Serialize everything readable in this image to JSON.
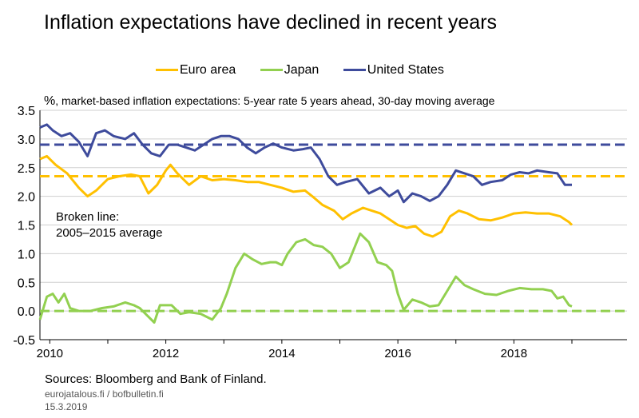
{
  "title": "Inflation expectations have declined in recent years",
  "subtitle_unit": "%",
  "subtitle_text": ", market-based inflation expectations: 5-year rate 5 years ahead, 30-day moving average",
  "note_line1": "Broken line:",
  "note_line2": "2005–2015 average",
  "sources": "Sources: Bloomberg and Bank of Finland.",
  "site": "eurojatalous.fi / bofbulletin.fi",
  "date": "15.3.2019",
  "colors": {
    "euro": "#FFC000",
    "japan": "#92D050",
    "us": "#3E4B9C"
  },
  "chart_data": {
    "type": "line",
    "xlim": [
      2009.83,
      2019.95
    ],
    "ylim": [
      -0.5,
      3.5
    ],
    "y_ticks": [
      "-0.5",
      "0.0",
      "0.5",
      "1.0",
      "1.5",
      "2.0",
      "2.5",
      "3.0",
      "3.5"
    ],
    "x_ticks": [
      "2010",
      "2012",
      "2014",
      "2016",
      "2018"
    ],
    "grid": true,
    "legend_position": "top",
    "series": [
      {
        "name": "Euro area",
        "color_key": "euro",
        "average": 2.35,
        "points": [
          [
            2009.83,
            2.65
          ],
          [
            2009.95,
            2.7
          ],
          [
            2010.1,
            2.55
          ],
          [
            2010.3,
            2.4
          ],
          [
            2010.5,
            2.15
          ],
          [
            2010.65,
            2.0
          ],
          [
            2010.8,
            2.1
          ],
          [
            2011.0,
            2.3
          ],
          [
            2011.2,
            2.35
          ],
          [
            2011.4,
            2.38
          ],
          [
            2011.55,
            2.35
          ],
          [
            2011.7,
            2.05
          ],
          [
            2011.85,
            2.2
          ],
          [
            2012.0,
            2.45
          ],
          [
            2012.08,
            2.55
          ],
          [
            2012.2,
            2.4
          ],
          [
            2012.4,
            2.2
          ],
          [
            2012.6,
            2.35
          ],
          [
            2012.8,
            2.28
          ],
          [
            2013.0,
            2.3
          ],
          [
            2013.2,
            2.28
          ],
          [
            2013.4,
            2.25
          ],
          [
            2013.6,
            2.25
          ],
          [
            2013.8,
            2.2
          ],
          [
            2014.0,
            2.15
          ],
          [
            2014.2,
            2.08
          ],
          [
            2014.4,
            2.1
          ],
          [
            2014.55,
            1.98
          ],
          [
            2014.7,
            1.85
          ],
          [
            2014.9,
            1.75
          ],
          [
            2015.05,
            1.6
          ],
          [
            2015.2,
            1.7
          ],
          [
            2015.4,
            1.8
          ],
          [
            2015.55,
            1.75
          ],
          [
            2015.7,
            1.7
          ],
          [
            2015.85,
            1.6
          ],
          [
            2016.0,
            1.5
          ],
          [
            2016.15,
            1.45
          ],
          [
            2016.3,
            1.48
          ],
          [
            2016.45,
            1.35
          ],
          [
            2016.6,
            1.3
          ],
          [
            2016.75,
            1.38
          ],
          [
            2016.9,
            1.65
          ],
          [
            2017.05,
            1.75
          ],
          [
            2017.2,
            1.7
          ],
          [
            2017.4,
            1.6
          ],
          [
            2017.6,
            1.58
          ],
          [
            2017.8,
            1.63
          ],
          [
            2018.0,
            1.7
          ],
          [
            2018.2,
            1.72
          ],
          [
            2018.4,
            1.7
          ],
          [
            2018.6,
            1.7
          ],
          [
            2018.8,
            1.65
          ],
          [
            2018.95,
            1.55
          ],
          [
            2019.0,
            1.5
          ]
        ]
      },
      {
        "name": "Japan",
        "color_key": "japan",
        "average": 0.0,
        "points": [
          [
            2009.83,
            -0.15
          ],
          [
            2009.95,
            0.25
          ],
          [
            2010.05,
            0.3
          ],
          [
            2010.15,
            0.15
          ],
          [
            2010.25,
            0.3
          ],
          [
            2010.35,
            0.05
          ],
          [
            2010.5,
            0.0
          ],
          [
            2010.7,
            0.0
          ],
          [
            2010.9,
            0.05
          ],
          [
            2011.1,
            0.08
          ],
          [
            2011.3,
            0.15
          ],
          [
            2011.45,
            0.1
          ],
          [
            2011.55,
            0.05
          ],
          [
            2011.65,
            -0.05
          ],
          [
            2011.8,
            -0.2
          ],
          [
            2011.9,
            0.1
          ],
          [
            2012.1,
            0.1
          ],
          [
            2012.25,
            -0.05
          ],
          [
            2012.4,
            -0.02
          ],
          [
            2012.6,
            -0.05
          ],
          [
            2012.8,
            -0.15
          ],
          [
            2012.95,
            0.05
          ],
          [
            2013.05,
            0.3
          ],
          [
            2013.2,
            0.75
          ],
          [
            2013.35,
            1.0
          ],
          [
            2013.5,
            0.9
          ],
          [
            2013.65,
            0.82
          ],
          [
            2013.8,
            0.85
          ],
          [
            2013.9,
            0.85
          ],
          [
            2014.0,
            0.8
          ],
          [
            2014.1,
            1.0
          ],
          [
            2014.25,
            1.2
          ],
          [
            2014.4,
            1.25
          ],
          [
            2014.55,
            1.15
          ],
          [
            2014.7,
            1.12
          ],
          [
            2014.85,
            1.0
          ],
          [
            2015.0,
            0.75
          ],
          [
            2015.15,
            0.85
          ],
          [
            2015.35,
            1.35
          ],
          [
            2015.5,
            1.2
          ],
          [
            2015.65,
            0.85
          ],
          [
            2015.8,
            0.8
          ],
          [
            2015.9,
            0.7
          ],
          [
            2016.0,
            0.3
          ],
          [
            2016.1,
            0.02
          ],
          [
            2016.25,
            0.2
          ],
          [
            2016.4,
            0.15
          ],
          [
            2016.55,
            0.08
          ],
          [
            2016.7,
            0.1
          ],
          [
            2016.85,
            0.35
          ],
          [
            2017.0,
            0.6
          ],
          [
            2017.15,
            0.45
          ],
          [
            2017.3,
            0.38
          ],
          [
            2017.5,
            0.3
          ],
          [
            2017.7,
            0.28
          ],
          [
            2017.9,
            0.35
          ],
          [
            2018.1,
            0.4
          ],
          [
            2018.3,
            0.38
          ],
          [
            2018.5,
            0.38
          ],
          [
            2018.65,
            0.35
          ],
          [
            2018.75,
            0.22
          ],
          [
            2018.85,
            0.25
          ],
          [
            2018.95,
            0.1
          ],
          [
            2019.0,
            0.08
          ]
        ]
      },
      {
        "name": "United States",
        "color_key": "us",
        "average": 2.9,
        "points": [
          [
            2009.83,
            3.2
          ],
          [
            2009.95,
            3.25
          ],
          [
            2010.05,
            3.15
          ],
          [
            2010.2,
            3.05
          ],
          [
            2010.35,
            3.1
          ],
          [
            2010.5,
            2.95
          ],
          [
            2010.65,
            2.7
          ],
          [
            2010.8,
            3.1
          ],
          [
            2010.95,
            3.15
          ],
          [
            2011.1,
            3.05
          ],
          [
            2011.3,
            3.0
          ],
          [
            2011.45,
            3.1
          ],
          [
            2011.6,
            2.9
          ],
          [
            2011.75,
            2.75
          ],
          [
            2011.9,
            2.7
          ],
          [
            2012.05,
            2.9
          ],
          [
            2012.2,
            2.9
          ],
          [
            2012.35,
            2.85
          ],
          [
            2012.5,
            2.8
          ],
          [
            2012.65,
            2.9
          ],
          [
            2012.8,
            3.0
          ],
          [
            2012.95,
            3.05
          ],
          [
            2013.1,
            3.05
          ],
          [
            2013.25,
            3.0
          ],
          [
            2013.4,
            2.85
          ],
          [
            2013.55,
            2.75
          ],
          [
            2013.7,
            2.85
          ],
          [
            2013.85,
            2.92
          ],
          [
            2014.0,
            2.85
          ],
          [
            2014.2,
            2.8
          ],
          [
            2014.35,
            2.82
          ],
          [
            2014.5,
            2.85
          ],
          [
            2014.65,
            2.65
          ],
          [
            2014.8,
            2.35
          ],
          [
            2014.95,
            2.2
          ],
          [
            2015.1,
            2.25
          ],
          [
            2015.3,
            2.3
          ],
          [
            2015.5,
            2.05
          ],
          [
            2015.7,
            2.15
          ],
          [
            2015.85,
            2.0
          ],
          [
            2016.0,
            2.1
          ],
          [
            2016.1,
            1.9
          ],
          [
            2016.25,
            2.05
          ],
          [
            2016.4,
            2.0
          ],
          [
            2016.55,
            1.92
          ],
          [
            2016.7,
            2.0
          ],
          [
            2016.85,
            2.2
          ],
          [
            2017.0,
            2.45
          ],
          [
            2017.15,
            2.4
          ],
          [
            2017.3,
            2.35
          ],
          [
            2017.45,
            2.2
          ],
          [
            2017.6,
            2.25
          ],
          [
            2017.8,
            2.28
          ],
          [
            2017.95,
            2.38
          ],
          [
            2018.1,
            2.42
          ],
          [
            2018.25,
            2.4
          ],
          [
            2018.4,
            2.45
          ],
          [
            2018.6,
            2.42
          ],
          [
            2018.75,
            2.4
          ],
          [
            2018.88,
            2.2
          ],
          [
            2019.0,
            2.2
          ]
        ]
      }
    ]
  }
}
